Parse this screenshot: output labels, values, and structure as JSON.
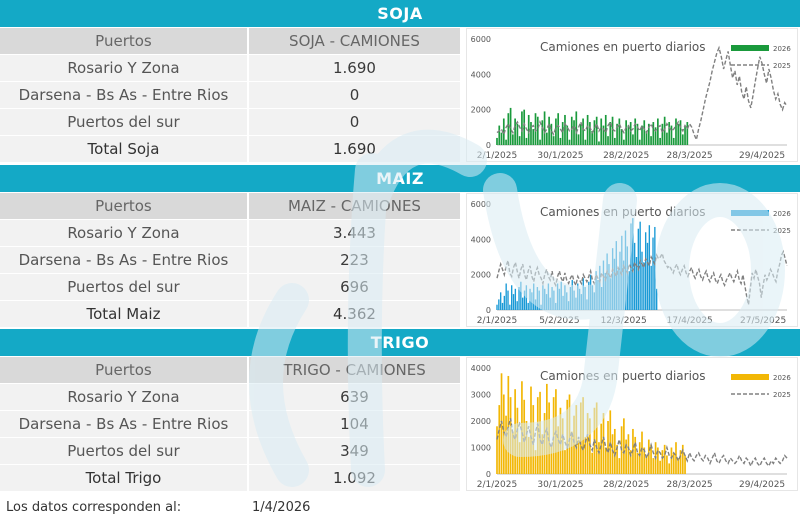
{
  "sections": [
    {
      "id": "soja",
      "title": "SOJA",
      "col_ports": "Puertos",
      "col_trucks": "SOJA - CAMIONES",
      "rows": [
        {
          "port": "Rosario Y Zona",
          "trucks": "1.690"
        },
        {
          "port": "Darsena - Bs As - Entre Rios",
          "trucks": "0"
        },
        {
          "port": "Puertos del sur",
          "trucks": "0"
        }
      ],
      "total_label": "Total Soja",
      "total_value": "1.690"
    },
    {
      "id": "maiz",
      "title": "MAIZ",
      "col_ports": "Puertos",
      "col_trucks": "MAIZ - CAMIONES",
      "rows": [
        {
          "port": "Rosario Y Zona",
          "trucks": "3.443"
        },
        {
          "port": "Darsena - Bs As - Entre Rios",
          "trucks": "223"
        },
        {
          "port": "Puertos del sur",
          "trucks": "696"
        }
      ],
      "total_label": "Total Maiz",
      "total_value": "4.362"
    },
    {
      "id": "trigo",
      "title": "TRIGO",
      "col_ports": "Puertos",
      "col_trucks": "TRIGO - CAMIONES",
      "rows": [
        {
          "port": "Rosario Y Zona",
          "trucks": "639"
        },
        {
          "port": "Darsena - Bs As - Entre Rios",
          "trucks": "104"
        },
        {
          "port": "Puertos del sur",
          "trucks": "349"
        }
      ],
      "total_label": "Total Trigo",
      "total_value": "1.092"
    }
  ],
  "footer": {
    "label": "Los datos corresponden al:",
    "value": "1/4/2026"
  },
  "chart_data": [
    {
      "type": "bar",
      "title": "Camiones en puerto diarios",
      "ylim": [
        0,
        6000
      ],
      "yticks": [
        0,
        2000,
        4000,
        6000
      ],
      "xticks": [
        "2/1/2025",
        "30/1/2025",
        "28/2/2025",
        "28/3/2025",
        "29/4/2025"
      ],
      "xtick_days": [
        0,
        28,
        57,
        85,
        117
      ],
      "legend_position": "top-right",
      "series": [
        {
          "name": "2026",
          "kind": "bar",
          "color": "#1a9a3c",
          "values": [
            400,
            1100,
            700,
            1500,
            300,
            1800,
            2100,
            600,
            1500,
            1200,
            500,
            1900,
            2000,
            400,
            1700,
            1300,
            900,
            1800,
            1600,
            300,
            1400,
            1900,
            700,
            1600,
            1200,
            500,
            1500,
            1800,
            400,
            1300,
            1700,
            1100,
            300,
            1600,
            1400,
            1900,
            600,
            1200,
            1500,
            300,
            1700,
            1300,
            800,
            1400,
            1600,
            200,
            1500,
            1100,
            1700,
            500,
            1300,
            1600,
            400,
            1200,
            1500,
            900,
            300,
            1400,
            1100,
            1300,
            600,
            1500,
            1200,
            300,
            1100,
            1400,
            800,
            1200,
            500,
            1300,
            1000,
            1500,
            400,
            1200,
            1600,
            700,
            1300,
            1100,
            400,
            1500,
            1200,
            1400,
            600,
            1100,
            1300
          ]
        },
        {
          "name": "2025",
          "kind": "line",
          "color": "#808080",
          "values": [
            700,
            800,
            900,
            600,
            1000,
            1200,
            900,
            700,
            1100,
            1300,
            1000,
            800,
            1200,
            900,
            700,
            1000,
            1100,
            800,
            900,
            1300,
            1000,
            700,
            900,
            1200,
            800,
            600,
            1000,
            1100,
            900,
            700,
            1200,
            1000,
            800,
            900,
            1100,
            700,
            1000,
            1300,
            900,
            800,
            1100,
            1000,
            700,
            900,
            1200,
            800,
            1000,
            900,
            700,
            1100,
            1300,
            900,
            800,
            1000,
            1200,
            900,
            700,
            1000,
            1100,
            800,
            900,
            1200,
            1000,
            800,
            1100,
            900,
            700,
            1000,
            1200,
            900,
            800,
            1000,
            1100,
            700,
            900,
            1200,
            1000,
            800,
            900,
            1100,
            1300,
            1000,
            800,
            1100,
            900,
            1200,
            1000,
            600,
            300,
            900,
            1400,
            2000,
            2600,
            3100,
            3600,
            4200,
            4700,
            5200,
            5500,
            5000,
            4300,
            4800,
            5300,
            4500,
            3800,
            4200,
            3400,
            3900,
            3000,
            2600,
            3300,
            2500,
            2100,
            2800,
            3600,
            4300,
            5000,
            4600,
            4000,
            3500,
            4300,
            3800,
            3100,
            2600,
            2900,
            2300,
            2000,
            2400,
            2200
          ]
        }
      ]
    },
    {
      "type": "bar",
      "title": "Camiones en puerto diarios",
      "ylim": [
        0,
        6000
      ],
      "yticks": [
        0,
        2000,
        4000,
        6000
      ],
      "xticks": [
        "2/1/2025",
        "5/2/2025",
        "12/3/2025",
        "17/4/2025",
        "27/5/2025"
      ],
      "xtick_days": [
        0,
        34,
        69,
        105,
        145
      ],
      "legend_position": "top-right",
      "series": [
        {
          "name": "2026",
          "kind": "bar",
          "color": "#1a9ad6",
          "values": [
            300,
            600,
            1000,
            400,
            800,
            1500,
            1100,
            300,
            1400,
            900,
            1200,
            500,
            1300,
            1600,
            700,
            1100,
            1400,
            400,
            1200,
            1000,
            1500,
            600,
            1300,
            1100,
            300,
            1400,
            1200,
            900,
            1500,
            700,
            1300,
            1100,
            400,
            1500,
            1200,
            1600,
            800,
            1400,
            1000,
            500,
            1300,
            1700,
            1100,
            700,
            1500,
            1200,
            900,
            1800,
            1300,
            600,
            1600,
            2000,
            1400,
            1000,
            2200,
            1700,
            2500,
            1300,
            2800,
            2100,
            3200,
            2600,
            1800,
            3500,
            2900,
            3900,
            2300,
            3300,
            4200,
            2800,
            4500,
            3600,
            2200,
            4900,
            5200,
            3800,
            3000,
            4600,
            5000,
            3300,
            2700,
            4400,
            3800,
            4800,
            2500,
            4100,
            4700,
            1200
          ]
        },
        {
          "name": "2025",
          "kind": "line",
          "color": "#808080",
          "values": [
            1800,
            2200,
            2600,
            2300,
            2000,
            2500,
            2800,
            2100,
            1900,
            2400,
            2700,
            2200,
            1800,
            2300,
            2600,
            2000,
            1700,
            2200,
            2500,
            1900,
            1600,
            2100,
            2400,
            2000,
            1800,
            1500,
            2000,
            2300,
            1900,
            1700,
            2200,
            1600,
            1400,
            1900,
            2200,
            1800,
            1600,
            2100,
            1700,
            1500,
            1800,
            2000,
            1600,
            1400,
            1900,
            1700,
            1500,
            2000,
            1800,
            1600,
            1900,
            2200,
            1700,
            1500,
            2000,
            1800,
            1600,
            2100,
            1900,
            1700,
            2200,
            2000,
            1800,
            2300,
            2100,
            1900,
            2400,
            2200,
            2000,
            2500,
            2300,
            2100,
            2600,
            2400,
            2200,
            2700,
            2500,
            2300,
            2800,
            2600,
            2400,
            2900,
            2700,
            2500,
            3000,
            2800,
            2600,
            3100,
            2900,
            3000,
            3200,
            2800,
            2600,
            2400,
            2500,
            2300,
            2100,
            2400,
            2600,
            2200,
            2000,
            2300,
            2500,
            2100,
            1900,
            2200,
            2400,
            2000,
            1800,
            2100,
            2300,
            1900,
            1700,
            2000,
            2200,
            1800,
            1600,
            1900,
            2100,
            1700,
            1500,
            1800,
            2000,
            1600,
            1400,
            1700,
            1900,
            2100,
            1800,
            1600,
            1900,
            2200,
            1700,
            1500,
            2000,
            1400,
            800,
            300,
            1200,
            2100,
            1800,
            2300,
            1900,
            1500,
            700,
            1400,
            2000,
            1700,
            1900,
            2300,
            2100,
            1800,
            1600,
            2200,
            2600,
            3100,
            3300,
            2900,
            2500
          ]
        }
      ]
    },
    {
      "type": "bar",
      "title": "Camiones en puerto diarios",
      "ylim": [
        0,
        4000
      ],
      "yticks": [
        0,
        1000,
        2000,
        3000,
        4000
      ],
      "xticks": [
        "2/1/2025",
        "30/1/2025",
        "28/2/2025",
        "28/3/2025",
        "29/4/2025"
      ],
      "xtick_days": [
        0,
        28,
        57,
        85,
        117
      ],
      "legend_position": "top-right",
      "series": [
        {
          "name": "2026",
          "kind": "bar",
          "color": "#f2b705",
          "values": [
            1800,
            2600,
            3800,
            3000,
            2200,
            3700,
            2900,
            1600,
            3200,
            2500,
            1200,
            3500,
            2800,
            2000,
            1400,
            3300,
            2600,
            900,
            2900,
            3100,
            1500,
            2300,
            3400,
            2700,
            1100,
            2900,
            3200,
            1800,
            2500,
            2100,
            900,
            2800,
            3000,
            1600,
            2200,
            2600,
            1300,
            2700,
            2900,
            1400,
            2300,
            2100,
            800,
            2500,
            2700,
            1200,
            1900,
            2300,
            1000,
            2000,
            2400,
            1500,
            1700,
            1100,
            600,
            1800,
            2100,
            1300,
            1500,
            900,
            1700,
            1400,
            800,
            1200,
            1600,
            1000,
            700,
            1300,
            1100,
            600,
            1200,
            1000,
            500,
            900,
            1100,
            700,
            400,
            1000,
            800,
            1200,
            600,
            900,
            1100,
            700
          ]
        },
        {
          "name": "2025",
          "kind": "line",
          "color": "#808080",
          "values": [
            1300,
            1700,
            2000,
            1600,
            1400,
            1800,
            2100,
            1500,
            1300,
            1700,
            1900,
            1600,
            1200,
            1500,
            1800,
            1400,
            1100,
            1600,
            1900,
            1300,
            1100,
            1500,
            1700,
            1200,
            1000,
            1400,
            1600,
            1300,
            1100,
            1500,
            1200,
            1000,
            1300,
            1600,
            1200,
            1000,
            1400,
            1100,
            900,
            1200,
            1500,
            1100,
            900,
            1300,
            1000,
            800,
            1100,
            1400,
            1000,
            800,
            1200,
            900,
            700,
            1000,
            1300,
            900,
            800,
            1100,
            1000,
            700,
            900,
            1200,
            800,
            700,
            1000,
            900,
            600,
            800,
            1100,
            800,
            600,
            900,
            800,
            600,
            700,
            1000,
            700,
            600,
            800,
            700,
            500,
            700,
            900,
            700,
            500,
            800,
            600,
            500,
            700,
            800,
            600,
            500,
            700,
            600,
            400,
            600,
            800,
            500,
            400,
            600,
            700,
            500,
            400,
            600,
            500,
            400,
            500,
            700,
            500,
            400,
            600,
            500,
            300,
            500,
            600,
            400,
            300,
            500,
            600,
            400,
            300,
            500,
            400,
            600,
            500,
            400,
            500,
            700,
            600
          ]
        }
      ]
    }
  ]
}
